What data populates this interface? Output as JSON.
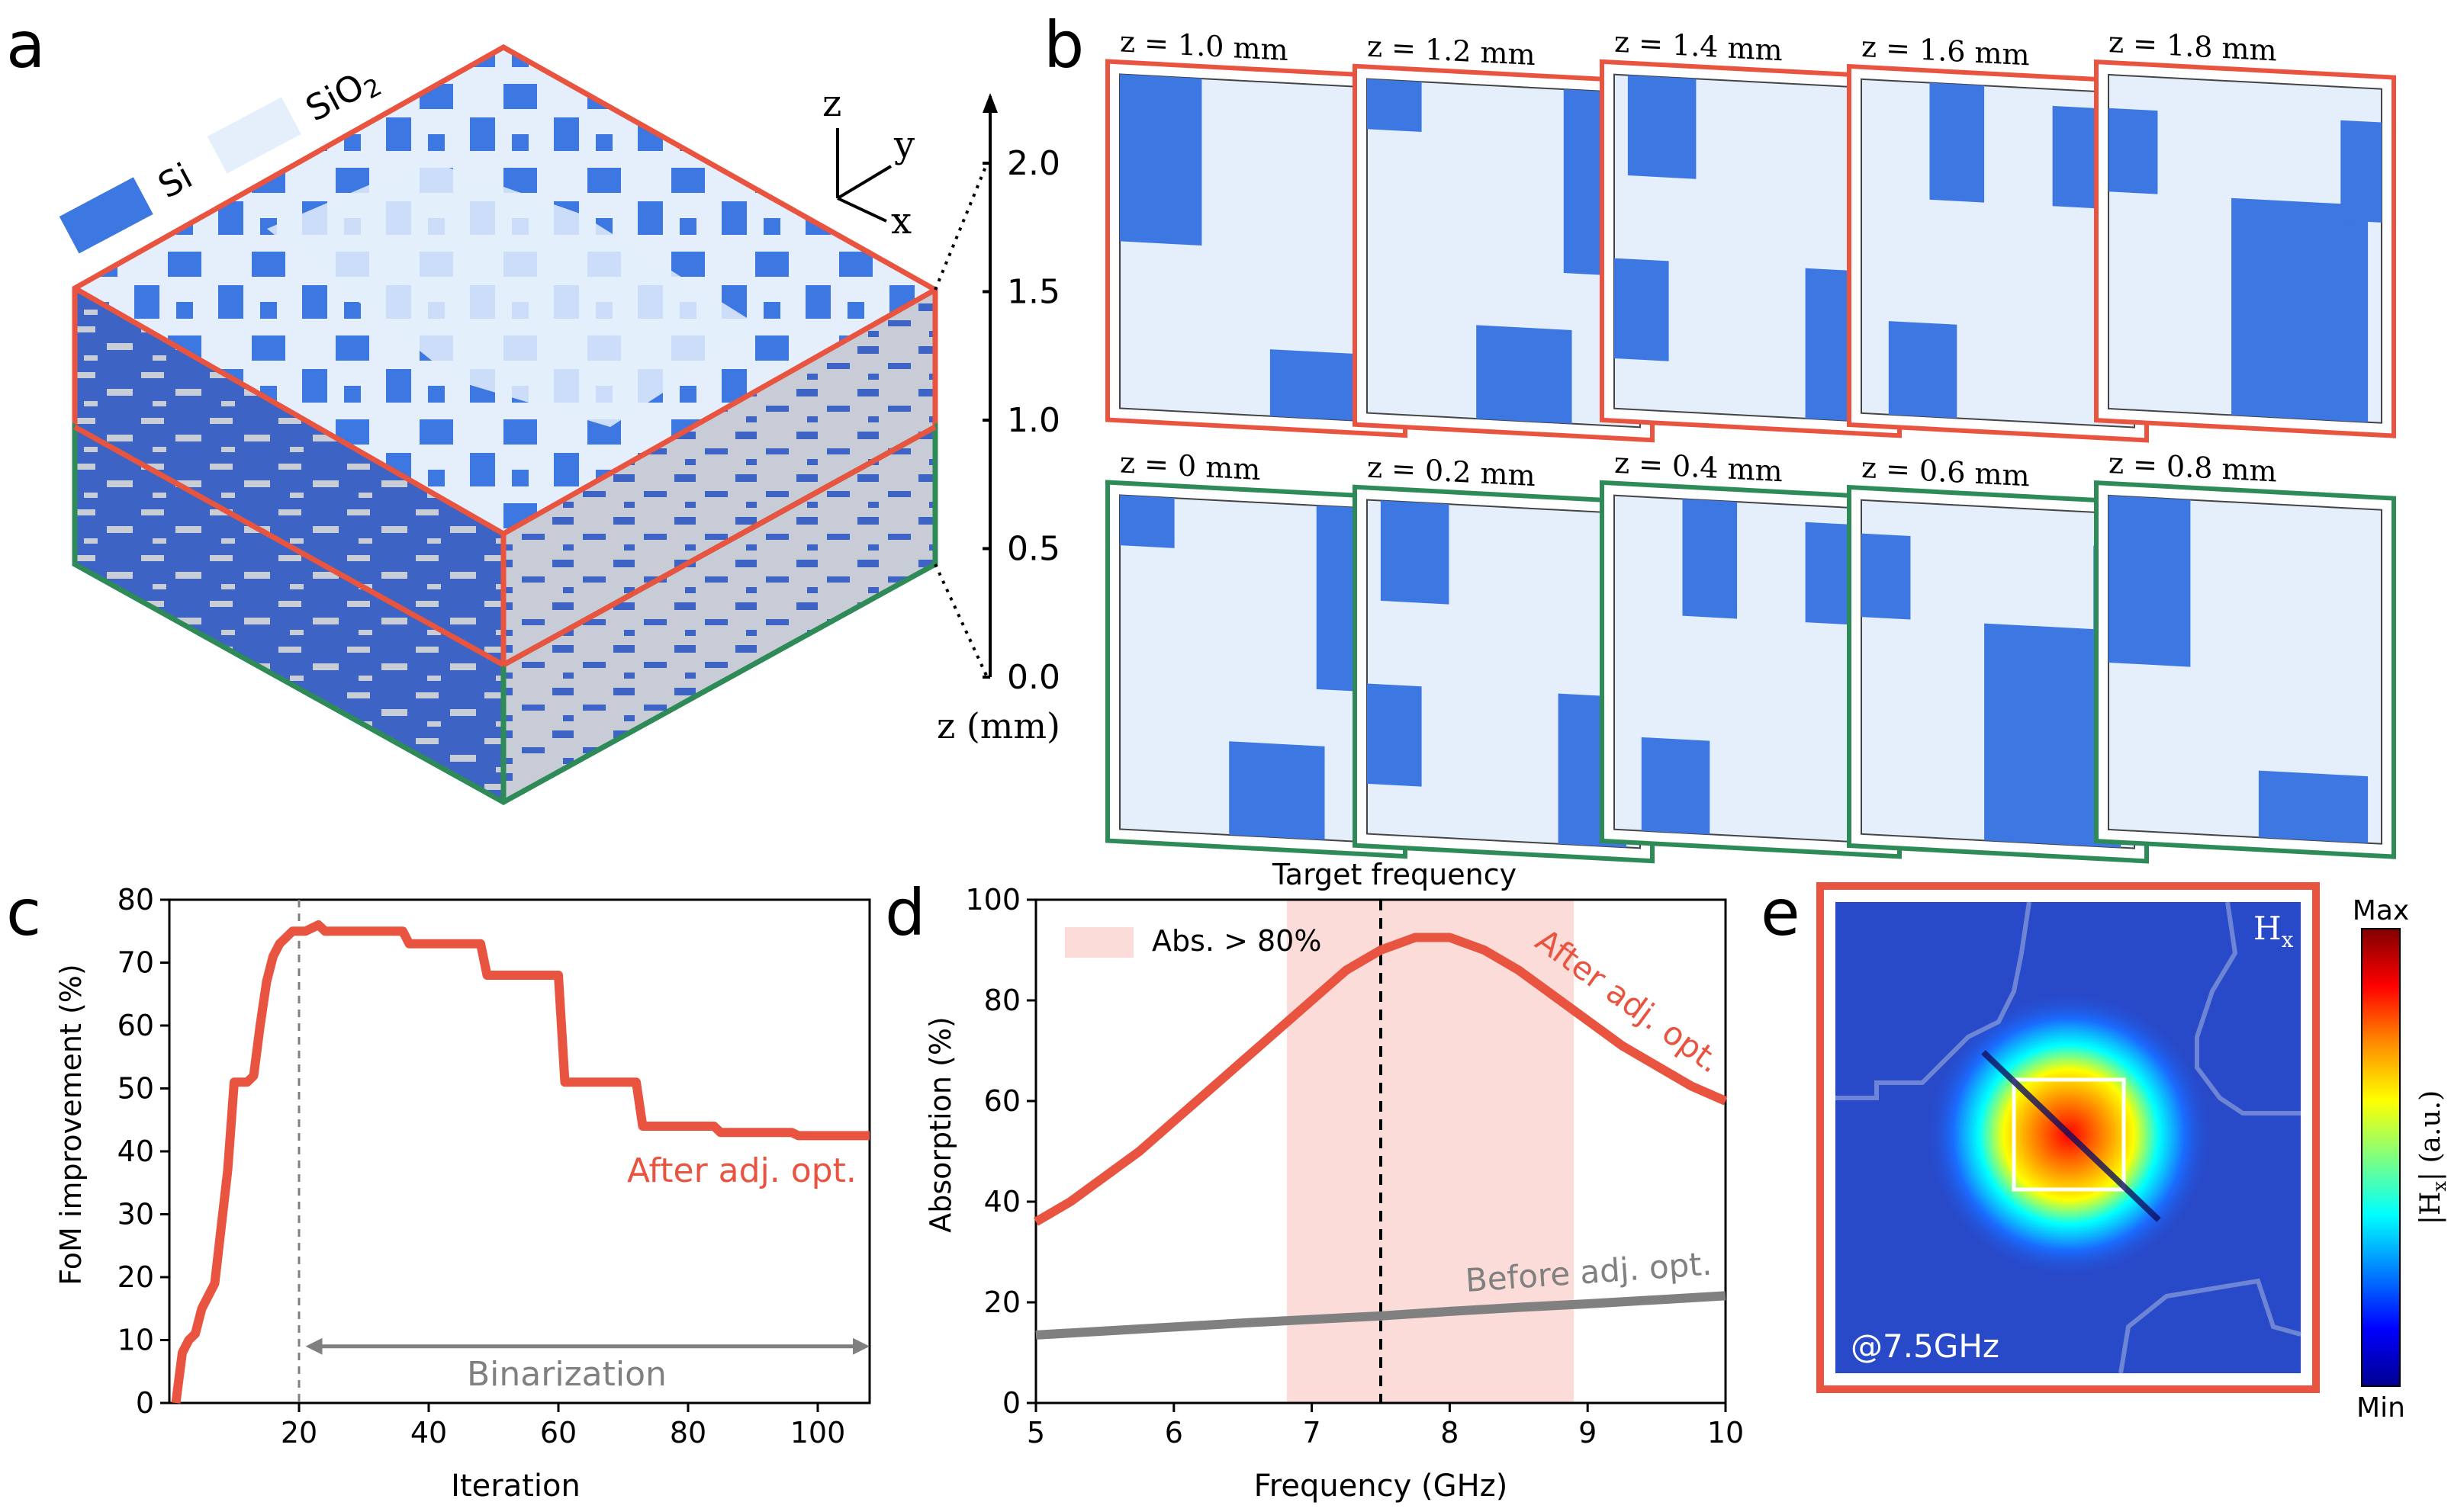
{
  "figure": {
    "panel_labels": [
      "a",
      "b",
      "c",
      "d",
      "e"
    ]
  },
  "legend_a": {
    "si": "Si",
    "sio2": "SiO",
    "sio2_sub": "2",
    "si_color": "#3d77e2",
    "sio2_color": "#e4effb"
  },
  "axes3d": {
    "x": "x",
    "y": "y",
    "z": "z"
  },
  "zbar": {
    "ticks": [
      "2.0",
      "1.5",
      "1.0",
      "0.5",
      "0.0"
    ],
    "label": "z (mm)"
  },
  "slices": {
    "top_labels": [
      "z = 1.0 mm",
      "z = 1.2 mm",
      "z = 1.4 mm",
      "z = 1.6 mm",
      "z = 1.8 mm"
    ],
    "bottom_labels": [
      "z = 0 mm",
      "z = 0.2 mm",
      "z = 0.4 mm",
      "z = 0.6 mm",
      "z = 0.8 mm"
    ],
    "top_color": "#e8543f",
    "bottom_color": "#2e8b57"
  },
  "colors": {
    "si": "#3d77e2",
    "sio2": "#e4effb",
    "red": "#e8543f",
    "green": "#2e8b57",
    "gray": "#808080"
  },
  "chart_data": [
    {
      "panel": "c",
      "type": "line",
      "title": "",
      "xlabel": "Iteration",
      "ylabel": "FoM improvement (%)",
      "xlim": [
        0,
        108
      ],
      "ylim": [
        0,
        80
      ],
      "xticks": [
        20,
        40,
        60,
        80,
        100
      ],
      "yticks": [
        0,
        10,
        20,
        30,
        40,
        50,
        60,
        70,
        80
      ],
      "series": [
        {
          "name": "After adj. opt.",
          "color": "#e8543f",
          "x": [
            1,
            2,
            3,
            4,
            5,
            6,
            7,
            8,
            9,
            10,
            11,
            12,
            13,
            14,
            15,
            16,
            17,
            18,
            19,
            20,
            21,
            22,
            23,
            24,
            36,
            37,
            48,
            49,
            60,
            61,
            72,
            73,
            84,
            85,
            96,
            97,
            108
          ],
          "y": [
            0,
            8,
            10,
            11,
            15,
            17,
            19,
            28,
            37,
            51,
            51,
            51,
            52,
            60,
            67,
            71,
            73,
            74,
            75,
            75,
            75,
            75.5,
            76,
            75,
            75,
            73,
            73,
            68,
            68,
            51,
            51,
            44,
            44,
            43,
            43,
            42.5,
            42.5
          ]
        }
      ],
      "annotations": {
        "curve_label": "After adj. opt.",
        "arrow_label": "Binarization",
        "arrow_from": 21,
        "arrow_to": 108,
        "vline_x": 20
      }
    },
    {
      "panel": "d",
      "type": "line",
      "title": "Target frequency",
      "xlabel": "Frequency (GHz)",
      "ylabel": "Absorption (%)",
      "xlim": [
        5,
        10
      ],
      "ylim": [
        0,
        100
      ],
      "xticks": [
        5,
        6,
        7,
        8,
        9,
        10
      ],
      "yticks": [
        0,
        20,
        40,
        60,
        80,
        100
      ],
      "shaded_band": [
        6.82,
        8.9
      ],
      "shaded_label": "Abs. > 80%",
      "vline_x": 7.5,
      "series": [
        {
          "name": "After adj. opt.",
          "color": "#e8543f",
          "x": [
            5.0,
            5.25,
            5.5,
            5.75,
            6.0,
            6.25,
            6.5,
            6.75,
            7.0,
            7.25,
            7.5,
            7.75,
            8.0,
            8.25,
            8.5,
            8.75,
            9.0,
            9.25,
            9.5,
            9.75,
            10.0
          ],
          "y": [
            36,
            40,
            45,
            50,
            56,
            62,
            68,
            74,
            80,
            86,
            90,
            92.5,
            92.5,
            90,
            86,
            81,
            76,
            71,
            67,
            63,
            60
          ]
        },
        {
          "name": "Before adj. opt.",
          "color": "#808080",
          "x": [
            5.0,
            5.5,
            6.0,
            6.5,
            7.0,
            7.5,
            8.0,
            8.5,
            9.0,
            9.5,
            10.0
          ],
          "y": [
            13.5,
            14.3,
            15.1,
            15.9,
            16.6,
            17.3,
            18.2,
            19.0,
            19.7,
            20.5,
            21.3
          ]
        }
      ]
    }
  ],
  "field_map": {
    "component": "H",
    "component_sub": "x",
    "freq_label": "@7.5GHz",
    "cbar_max": "Max",
    "cbar_min": "Min",
    "cbar_label_open": "|H",
    "cbar_label_sub": "x",
    "cbar_label_close": "| (a.u.)",
    "cbar_colors": [
      "#800000",
      "#ff0000",
      "#ff8c00",
      "#ffff00",
      "#7fff7f",
      "#00ffff",
      "#0080ff",
      "#0000ff",
      "#00008f"
    ],
    "frame_color": "#e8543f"
  }
}
